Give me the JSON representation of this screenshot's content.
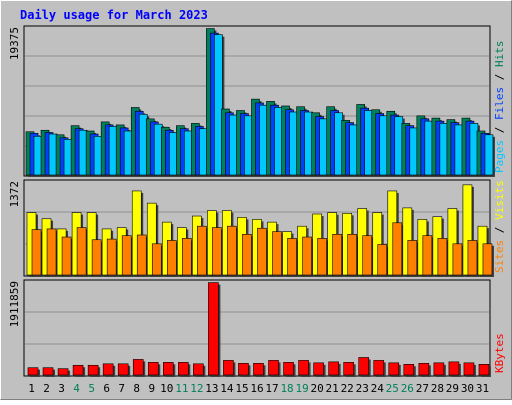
{
  "chart_data": {
    "type": "bar",
    "title": "Daily usage for March 2023",
    "colors": {
      "background": "#c0c0c0",
      "title": "#0000ff",
      "hits": "#00805c",
      "files": "#0040ff",
      "pages": "#00c8ff",
      "visits": "#ffff00",
      "sites": "#ff8000",
      "kbytes": "#ff0000",
      "weekend_label": "#00805c"
    },
    "categories": [
      "1",
      "2",
      "3",
      "4",
      "5",
      "6",
      "7",
      "8",
      "9",
      "10",
      "11",
      "12",
      "13",
      "14",
      "15",
      "16",
      "17",
      "18",
      "19",
      "20",
      "21",
      "22",
      "23",
      "24",
      "25",
      "26",
      "27",
      "28",
      "29",
      "30",
      "31"
    ],
    "weekend_days": [
      "4",
      "5",
      "11",
      "12",
      "18",
      "19",
      "25",
      "26"
    ],
    "panels": [
      {
        "id": "hits-files-pages",
        "ymax_label": "19375",
        "ylim": [
          0,
          19375
        ],
        "legend": [
          {
            "name": "Hits",
            "color": "#00805c"
          },
          {
            "name": "Files",
            "color": "#0040ff"
          },
          {
            "name": "Pages",
            "color": "#00c8ff"
          }
        ],
        "series": [
          {
            "name": "Hits",
            "values": [
              5700,
              5900,
              5300,
              6500,
              5800,
              7000,
              6600,
              8900,
              7400,
              6300,
              6500,
              6800,
              19300,
              8700,
              8500,
              10000,
              9700,
              9100,
              9000,
              8200,
              9000,
              7200,
              9300,
              8600,
              8400,
              6800,
              7800,
              7500,
              7300,
              7500,
              5800
            ]
          },
          {
            "name": "Files",
            "values": [
              5500,
              5600,
              4900,
              6100,
              5400,
              6600,
              6200,
              8400,
              7000,
              5900,
              6100,
              6400,
              18700,
              8200,
              8100,
              9500,
              9200,
              8600,
              8500,
              7700,
              8500,
              6900,
              8800,
              8100,
              7900,
              6500,
              7400,
              7100,
              6900,
              7100,
              5500
            ]
          },
          {
            "name": "Pages",
            "values": [
              5100,
              5400,
              4700,
              5900,
              5100,
              6400,
              5800,
              8000,
              6700,
              5600,
              5800,
              6100,
              18500,
              7900,
              7800,
              9200,
              8900,
              8300,
              8300,
              7400,
              8200,
              6600,
              8500,
              7800,
              7700,
              6200,
              7100,
              6800,
              6600,
              6800,
              5300
            ]
          }
        ]
      },
      {
        "id": "visits-sites",
        "ymax_label": "1372",
        "ylim": [
          0,
          1372
        ],
        "legend": [
          {
            "name": "Visits",
            "color": "#ffff00"
          },
          {
            "name": "Sites",
            "color": "#ff8000"
          }
        ],
        "series": [
          {
            "name": "Visits",
            "values": [
              920,
              830,
              680,
              920,
              920,
              680,
              700,
              1240,
              1060,
              780,
              700,
              870,
              950,
              950,
              850,
              820,
              780,
              640,
              720,
              900,
              920,
              910,
              980,
              920,
              1240,
              990,
              820,
              860,
              980,
              1330,
              720
            ]
          },
          {
            "name": "Sites",
            "values": [
              670,
              680,
              560,
              700,
              520,
              530,
              580,
              590,
              460,
              510,
              540,
              720,
              700,
              720,
              600,
              690,
              640,
              540,
              560,
              540,
              600,
              600,
              580,
              450,
              770,
              510,
              580,
              540,
              460,
              510,
              460
            ]
          }
        ]
      },
      {
        "id": "kbytes",
        "ymax_label": "1911859",
        "ylim": [
          0,
          1911859
        ],
        "legend": [
          {
            "name": "KBytes",
            "color": "#ff0000"
          }
        ],
        "series": [
          {
            "name": "KBytes",
            "values": [
              150000,
              150000,
              130000,
              200000,
              200000,
              230000,
              230000,
              320000,
              260000,
              260000,
              260000,
              230000,
              1900000,
              300000,
              240000,
              240000,
              300000,
              260000,
              300000,
              250000,
              270000,
              260000,
              360000,
              300000,
              250000,
              220000,
              240000,
              250000,
              270000,
              250000,
              220000
            ]
          }
        ]
      }
    ]
  }
}
